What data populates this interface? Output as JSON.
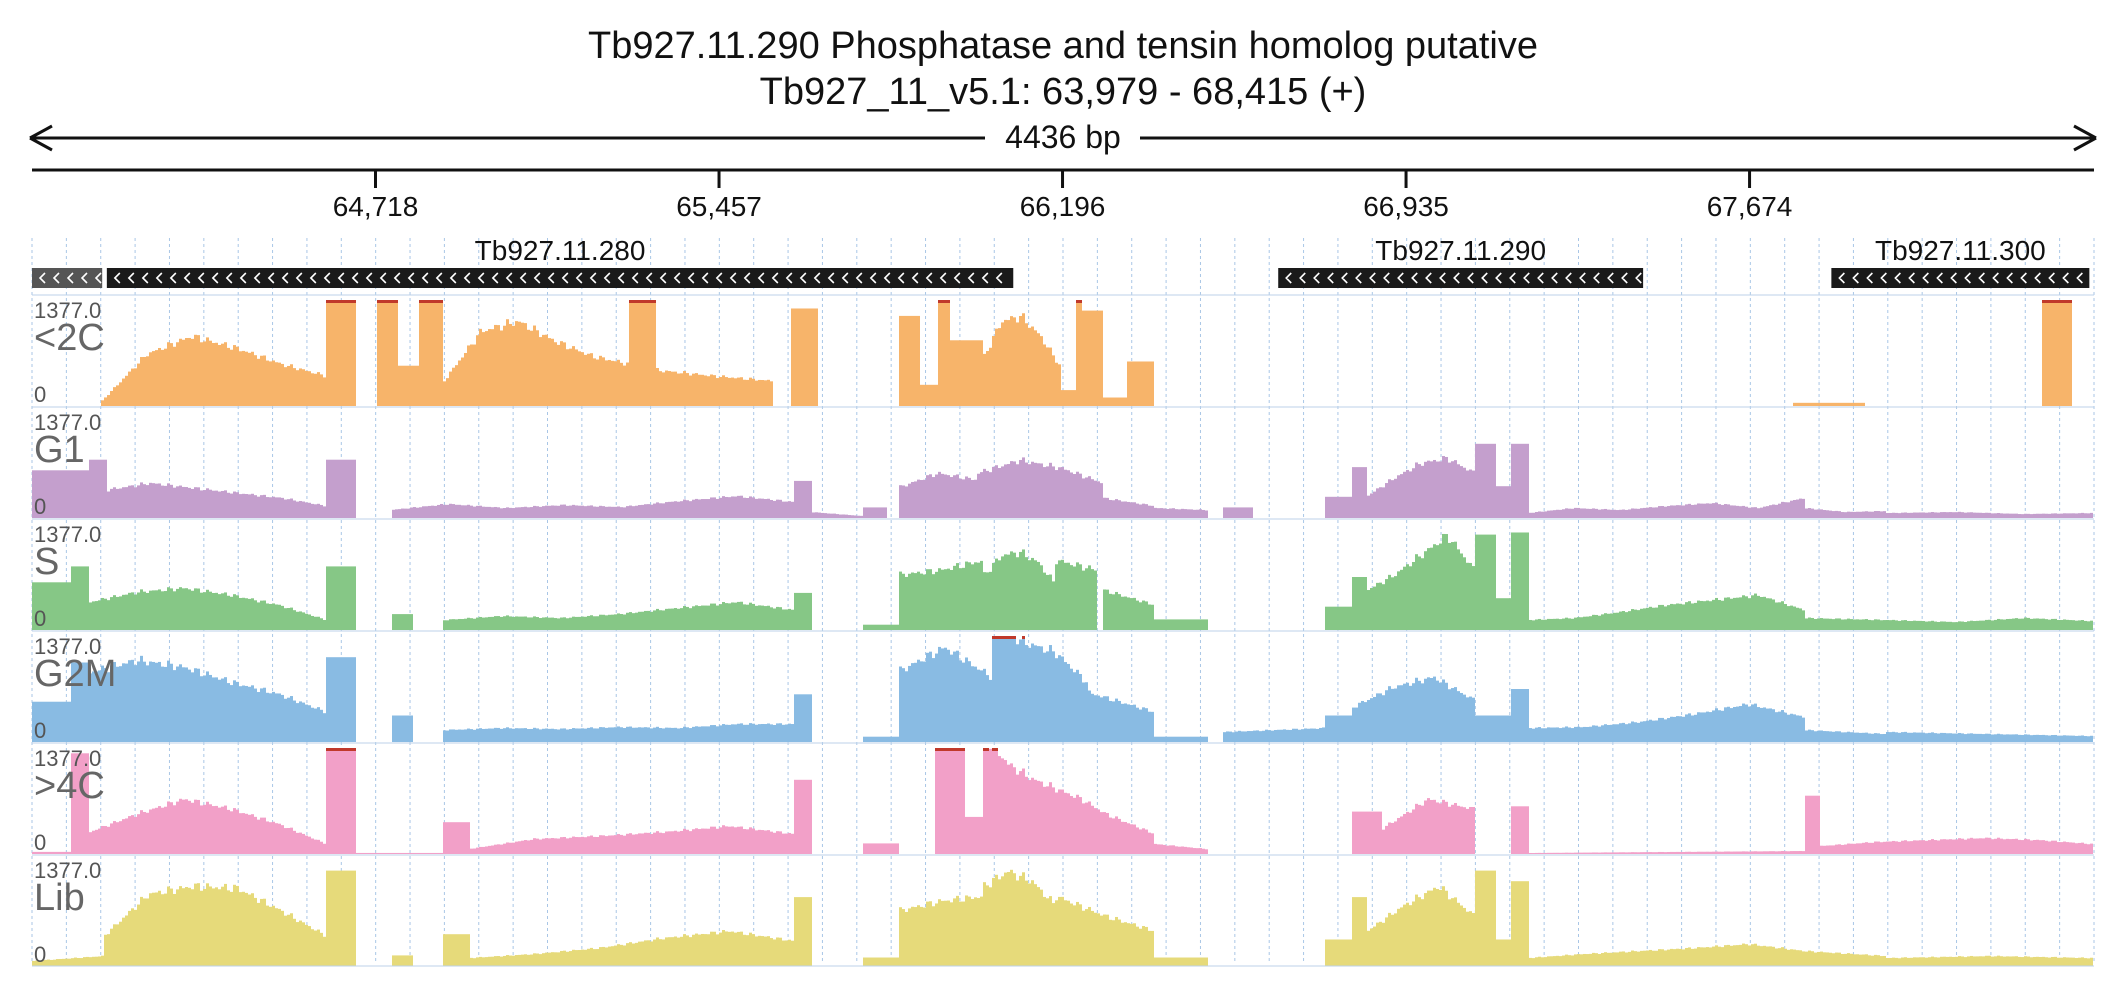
{
  "header": {
    "title": "Tb927.11.290  Phosphatase and tensin homolog  putative",
    "location": "Tb927_11_v5.1: 63,979 - 68,415 (+)",
    "span_label": "4436 bp"
  },
  "region": {
    "start": 63979,
    "end": 68415
  },
  "ruler": {
    "ticks": [
      {
        "pos": 64718,
        "label": "64,718"
      },
      {
        "pos": 65457,
        "label": "65,457"
      },
      {
        "pos": 66196,
        "label": "66,196"
      },
      {
        "pos": 66935,
        "label": "66,935"
      },
      {
        "pos": 67674,
        "label": "67,674"
      }
    ]
  },
  "genes": [
    {
      "name": "",
      "start": 63979,
      "end": 64130,
      "strand": "-",
      "style": "partial"
    },
    {
      "name": "Tb927.11.280",
      "start": 64140,
      "end": 66090,
      "strand": "-",
      "style": "solid"
    },
    {
      "name": "Tb927.11.290",
      "start": 66660,
      "end": 67445,
      "strand": "-",
      "style": "solid"
    },
    {
      "name": "Tb927.11.300",
      "start": 67850,
      "end": 68405,
      "strand": "-",
      "style": "solid"
    }
  ],
  "tracks": [
    {
      "name": "<2C",
      "max": "1377.0",
      "min": "0",
      "color": "#f7b46a",
      "clip": [
        [
          0.72,
          0.96
        ],
        [
          0.42,
          0.47
        ],
        [
          0.3,
          0.31
        ],
        [
          0.04,
          0.06
        ],
        [
          0.07,
          0.12
        ],
        [
          0.45,
          0.48
        ],
        [
          0.54,
          0.56
        ],
        [
          0.85,
          0.9
        ]
      ],
      "segments": [
        {
          "s": 0.0,
          "e": 0.034,
          "v": [
            0.0
          ]
        },
        {
          "s": 0.034,
          "e": 0.143,
          "v": [
            0.05,
            0.52,
            0.7,
            0.58,
            0.42,
            0.3
          ]
        },
        {
          "s": 0.143,
          "e": 0.157,
          "v": [
            1.2
          ]
        },
        {
          "s": 0.168,
          "e": 0.178,
          "v": [
            1.2
          ]
        },
        {
          "s": 0.178,
          "e": 0.188,
          "v": [
            0.38
          ]
        },
        {
          "s": 0.188,
          "e": 0.2,
          "v": [
            1.2
          ]
        },
        {
          "s": 0.2,
          "e": 0.29,
          "v": [
            0.25,
            0.75,
            0.85,
            0.65,
            0.5,
            0.42
          ]
        },
        {
          "s": 0.29,
          "e": 0.303,
          "v": [
            1.2
          ]
        },
        {
          "s": 0.303,
          "e": 0.36,
          "v": [
            0.36,
            0.3,
            0.25
          ]
        },
        {
          "s": 0.368,
          "e": 0.382,
          "v": [
            0.92
          ]
        },
        {
          "s": 0.421,
          "e": 0.431,
          "v": [
            0.85
          ]
        },
        {
          "s": 0.431,
          "e": 0.439,
          "v": [
            0.2
          ]
        },
        {
          "s": 0.439,
          "e": 0.446,
          "v": [
            1.2
          ]
        },
        {
          "s": 0.446,
          "e": 0.461,
          "v": [
            0.62
          ]
        },
        {
          "s": 0.461,
          "e": 0.499,
          "v": [
            0.45,
            0.85,
            0.9,
            0.7,
            0.4
          ]
        },
        {
          "s": 0.499,
          "e": 0.506,
          "v": [
            0.15
          ]
        },
        {
          "s": 0.506,
          "e": 0.51,
          "v": [
            1.2
          ]
        },
        {
          "s": 0.51,
          "e": 0.52,
          "v": [
            0.9
          ]
        },
        {
          "s": 0.52,
          "e": 0.531,
          "v": [
            0.08
          ]
        },
        {
          "s": 0.531,
          "e": 0.545,
          "v": [
            0.42
          ]
        },
        {
          "s": 0.855,
          "e": 0.89,
          "v": [
            0.03
          ]
        },
        {
          "s": 0.975,
          "e": 0.99,
          "v": [
            1.2
          ]
        }
      ]
    },
    {
      "name": "G1",
      "max": "1377.0",
      "min": "0",
      "color": "#c49fcd",
      "clip": [],
      "segments": [
        {
          "s": 0.0,
          "e": 0.027,
          "v": [
            0.45
          ]
        },
        {
          "s": 0.027,
          "e": 0.036,
          "v": [
            0.55
          ]
        },
        {
          "s": 0.036,
          "e": 0.143,
          "v": [
            0.28,
            0.35,
            0.3,
            0.25,
            0.2,
            0.12
          ]
        },
        {
          "s": 0.143,
          "e": 0.157,
          "v": [
            0.55
          ]
        },
        {
          "s": 0.174,
          "e": 0.37,
          "v": [
            0.08,
            0.14,
            0.1,
            0.13,
            0.11,
            0.17,
            0.22,
            0.16
          ]
        },
        {
          "s": 0.37,
          "e": 0.378,
          "v": [
            0.35
          ]
        },
        {
          "s": 0.378,
          "e": 0.403,
          "v": [
            0.06,
            0.02
          ]
        },
        {
          "s": 0.403,
          "e": 0.415,
          "v": [
            0.1
          ]
        },
        {
          "s": 0.42,
          "e": 0.459,
          "v": [
            0.3,
            0.45,
            0.38
          ]
        },
        {
          "s": 0.459,
          "e": 0.52,
          "v": [
            0.45,
            0.58,
            0.5,
            0.35
          ]
        },
        {
          "s": 0.52,
          "e": 0.545,
          "v": [
            0.2,
            0.12
          ]
        },
        {
          "s": 0.545,
          "e": 0.57,
          "v": [
            0.1,
            0.08
          ]
        },
        {
          "s": 0.578,
          "e": 0.592,
          "v": [
            0.1
          ]
        },
        {
          "s": 0.628,
          "e": 0.641,
          "v": [
            0.2
          ]
        },
        {
          "s": 0.641,
          "e": 0.648,
          "v": [
            0.48
          ]
        },
        {
          "s": 0.648,
          "e": 0.7,
          "v": [
            0.22,
            0.4,
            0.55,
            0.6,
            0.45
          ]
        },
        {
          "s": 0.7,
          "e": 0.71,
          "v": [
            0.7
          ]
        },
        {
          "s": 0.71,
          "e": 0.717,
          "v": [
            0.3
          ]
        },
        {
          "s": 0.717,
          "e": 0.726,
          "v": [
            0.7
          ]
        },
        {
          "s": 0.726,
          "e": 0.86,
          "v": [
            0.05,
            0.1,
            0.08,
            0.12,
            0.15,
            0.1,
            0.2
          ]
        },
        {
          "s": 0.86,
          "e": 0.9,
          "v": [
            0.1,
            0.06,
            0.07
          ]
        },
        {
          "s": 0.9,
          "e": 1.0,
          "v": [
            0.05,
            0.06,
            0.04,
            0.05
          ]
        }
      ]
    },
    {
      "name": "S",
      "max": "1377.0",
      "min": "0",
      "color": "#86c786",
      "clip": [],
      "segments": [
        {
          "s": 0.0,
          "e": 0.019,
          "v": [
            0.45
          ]
        },
        {
          "s": 0.019,
          "e": 0.028,
          "v": [
            0.6
          ]
        },
        {
          "s": 0.028,
          "e": 0.143,
          "v": [
            0.28,
            0.38,
            0.42,
            0.35,
            0.25,
            0.1
          ]
        },
        {
          "s": 0.143,
          "e": 0.157,
          "v": [
            0.6
          ]
        },
        {
          "s": 0.174,
          "e": 0.185,
          "v": [
            0.15
          ]
        },
        {
          "s": 0.2,
          "e": 0.37,
          "v": [
            0.1,
            0.14,
            0.12,
            0.16,
            0.22,
            0.28,
            0.2
          ]
        },
        {
          "s": 0.37,
          "e": 0.378,
          "v": [
            0.35
          ]
        },
        {
          "s": 0.403,
          "e": 0.42,
          "v": [
            0.05
          ]
        },
        {
          "s": 0.42,
          "e": 0.462,
          "v": [
            0.55,
            0.6,
            0.7
          ]
        },
        {
          "s": 0.462,
          "e": 0.497,
          "v": [
            0.55,
            0.75,
            0.78,
            0.68,
            0.45
          ]
        },
        {
          "s": 0.497,
          "e": 0.517,
          "v": [
            0.7,
            0.6
          ]
        },
        {
          "s": 0.52,
          "e": 0.545,
          "v": [
            0.4,
            0.25
          ]
        },
        {
          "s": 0.545,
          "e": 0.57,
          "v": [
            0.1
          ]
        },
        {
          "s": 0.628,
          "e": 0.641,
          "v": [
            0.22
          ]
        },
        {
          "s": 0.641,
          "e": 0.648,
          "v": [
            0.5
          ]
        },
        {
          "s": 0.648,
          "e": 0.7,
          "v": [
            0.4,
            0.55,
            0.75,
            0.95,
            0.6
          ]
        },
        {
          "s": 0.7,
          "e": 0.71,
          "v": [
            0.9
          ]
        },
        {
          "s": 0.71,
          "e": 0.717,
          "v": [
            0.3
          ]
        },
        {
          "s": 0.717,
          "e": 0.726,
          "v": [
            0.92
          ]
        },
        {
          "s": 0.726,
          "e": 0.86,
          "v": [
            0.1,
            0.12,
            0.18,
            0.25,
            0.3,
            0.35,
            0.2
          ]
        },
        {
          "s": 0.86,
          "e": 0.9,
          "v": [
            0.12,
            0.1
          ]
        },
        {
          "s": 0.9,
          "e": 1.0,
          "v": [
            0.1,
            0.08,
            0.12,
            0.09
          ]
        }
      ]
    },
    {
      "name": "G2M",
      "max": "1377.0",
      "min": "0",
      "color": "#89bbe3",
      "clip": [
        [
          0.438,
          0.447
        ],
        [
          0.466,
          0.478
        ],
        [
          0.508,
          0.512
        ]
      ],
      "segments": [
        {
          "s": 0.0,
          "e": 0.019,
          "v": [
            0.38
          ]
        },
        {
          "s": 0.019,
          "e": 0.028,
          "v": [
            0.75
          ]
        },
        {
          "s": 0.028,
          "e": 0.143,
          "v": [
            0.7,
            0.82,
            0.75,
            0.6,
            0.48,
            0.3
          ]
        },
        {
          "s": 0.143,
          "e": 0.157,
          "v": [
            0.8
          ]
        },
        {
          "s": 0.174,
          "e": 0.185,
          "v": [
            0.25
          ]
        },
        {
          "s": 0.2,
          "e": 0.37,
          "v": [
            0.12,
            0.14,
            0.13,
            0.15,
            0.14,
            0.18,
            0.18
          ]
        },
        {
          "s": 0.37,
          "e": 0.378,
          "v": [
            0.45
          ]
        },
        {
          "s": 0.403,
          "e": 0.42,
          "v": [
            0.05
          ]
        },
        {
          "s": 0.42,
          "e": 0.466,
          "v": [
            0.7,
            0.95,
            0.65
          ]
        },
        {
          "s": 0.466,
          "e": 0.512,
          "v": [
            1.2,
            1.0,
            0.9,
            0.6
          ]
        },
        {
          "s": 0.512,
          "e": 0.545,
          "v": [
            0.5,
            0.3
          ]
        },
        {
          "s": 0.545,
          "e": 0.57,
          "v": [
            0.05
          ]
        },
        {
          "s": 0.578,
          "e": 0.628,
          "v": [
            0.1,
            0.14
          ]
        },
        {
          "s": 0.628,
          "e": 0.641,
          "v": [
            0.25
          ]
        },
        {
          "s": 0.641,
          "e": 0.7,
          "v": [
            0.35,
            0.55,
            0.65,
            0.42
          ]
        },
        {
          "s": 0.7,
          "e": 0.717,
          "v": [
            0.25
          ]
        },
        {
          "s": 0.717,
          "e": 0.726,
          "v": [
            0.5
          ]
        },
        {
          "s": 0.726,
          "e": 0.86,
          "v": [
            0.14,
            0.15,
            0.2,
            0.28,
            0.38,
            0.25
          ]
        },
        {
          "s": 0.86,
          "e": 0.9,
          "v": [
            0.12,
            0.08
          ]
        },
        {
          "s": 0.9,
          "e": 1.0,
          "v": [
            0.1,
            0.08,
            0.06
          ]
        }
      ]
    },
    {
      "name": ">4C",
      "max": "1377.0",
      "min": "0",
      "color": "#f2a0c8",
      "clip": [
        [
          0.143,
          0.157
        ],
        [
          0.438,
          0.452
        ],
        [
          0.465,
          0.475
        ]
      ],
      "segments": [
        {
          "s": 0.0,
          "e": 0.019,
          "v": [
            0.02
          ]
        },
        {
          "s": 0.019,
          "e": 0.028,
          "v": [
            0.95
          ]
        },
        {
          "s": 0.028,
          "e": 0.143,
          "v": [
            0.22,
            0.4,
            0.55,
            0.45,
            0.3,
            0.1
          ]
        },
        {
          "s": 0.143,
          "e": 0.157,
          "v": [
            1.2
          ]
        },
        {
          "s": 0.157,
          "e": 0.2,
          "v": [
            0.01
          ]
        },
        {
          "s": 0.2,
          "e": 0.212,
          "v": [
            0.3
          ]
        },
        {
          "s": 0.212,
          "e": 0.37,
          "v": [
            0.05,
            0.15,
            0.18,
            0.22,
            0.28,
            0.2
          ]
        },
        {
          "s": 0.37,
          "e": 0.378,
          "v": [
            0.7
          ]
        },
        {
          "s": 0.403,
          "e": 0.42,
          "v": [
            0.1
          ]
        },
        {
          "s": 0.438,
          "e": 0.452,
          "v": [
            1.2
          ]
        },
        {
          "s": 0.452,
          "e": 0.462,
          "v": [
            0.35
          ]
        },
        {
          "s": 0.462,
          "e": 0.545,
          "v": [
            1.2,
            0.9,
            0.75,
            0.65,
            0.55,
            0.4,
            0.3,
            0.2
          ]
        },
        {
          "s": 0.545,
          "e": 0.57,
          "v": [
            0.1,
            0.05
          ]
        },
        {
          "s": 0.641,
          "e": 0.655,
          "v": [
            0.4
          ]
        },
        {
          "s": 0.655,
          "e": 0.7,
          "v": [
            0.25,
            0.55,
            0.45
          ]
        },
        {
          "s": 0.717,
          "e": 0.726,
          "v": [
            0.45
          ]
        },
        {
          "s": 0.726,
          "e": 0.86,
          "v": [
            0.01,
            0.02,
            0.03
          ]
        },
        {
          "s": 0.86,
          "e": 0.868,
          "v": [
            0.55
          ]
        },
        {
          "s": 0.868,
          "e": 1.0,
          "v": [
            0.08,
            0.12,
            0.14,
            0.16,
            0.14,
            0.1
          ]
        }
      ]
    },
    {
      "name": "Lib",
      "max": "1377.0",
      "min": "0",
      "color": "#e6da7a",
      "clip": [],
      "segments": [
        {
          "s": 0.0,
          "e": 0.035,
          "v": [
            0.05,
            0.1
          ]
        },
        {
          "s": 0.035,
          "e": 0.143,
          "v": [
            0.3,
            0.72,
            0.8,
            0.78,
            0.55,
            0.3
          ]
        },
        {
          "s": 0.143,
          "e": 0.157,
          "v": [
            0.9
          ]
        },
        {
          "s": 0.174,
          "e": 0.185,
          "v": [
            0.1
          ]
        },
        {
          "s": 0.2,
          "e": 0.212,
          "v": [
            0.3
          ]
        },
        {
          "s": 0.212,
          "e": 0.37,
          "v": [
            0.08,
            0.12,
            0.18,
            0.28,
            0.35,
            0.25
          ]
        },
        {
          "s": 0.37,
          "e": 0.378,
          "v": [
            0.65
          ]
        },
        {
          "s": 0.403,
          "e": 0.42,
          "v": [
            0.08
          ]
        },
        {
          "s": 0.42,
          "e": 0.462,
          "v": [
            0.55,
            0.65,
            0.7
          ]
        },
        {
          "s": 0.462,
          "e": 0.497,
          "v": [
            0.8,
            0.95,
            0.85,
            0.6
          ]
        },
        {
          "s": 0.497,
          "e": 0.545,
          "v": [
            0.7,
            0.5,
            0.35
          ]
        },
        {
          "s": 0.545,
          "e": 0.57,
          "v": [
            0.08
          ]
        },
        {
          "s": 0.628,
          "e": 0.641,
          "v": [
            0.25
          ]
        },
        {
          "s": 0.641,
          "e": 0.648,
          "v": [
            0.65
          ]
        },
        {
          "s": 0.648,
          "e": 0.7,
          "v": [
            0.35,
            0.6,
            0.8,
            0.5
          ]
        },
        {
          "s": 0.7,
          "e": 0.71,
          "v": [
            0.9
          ]
        },
        {
          "s": 0.71,
          "e": 0.717,
          "v": [
            0.25
          ]
        },
        {
          "s": 0.717,
          "e": 0.726,
          "v": [
            0.8
          ]
        },
        {
          "s": 0.726,
          "e": 0.86,
          "v": [
            0.08,
            0.12,
            0.15,
            0.18,
            0.22,
            0.15
          ]
        },
        {
          "s": 0.86,
          "e": 0.9,
          "v": [
            0.15,
            0.1
          ]
        },
        {
          "s": 0.9,
          "e": 1.0,
          "v": [
            0.08,
            0.1,
            0.08
          ]
        }
      ]
    }
  ]
}
